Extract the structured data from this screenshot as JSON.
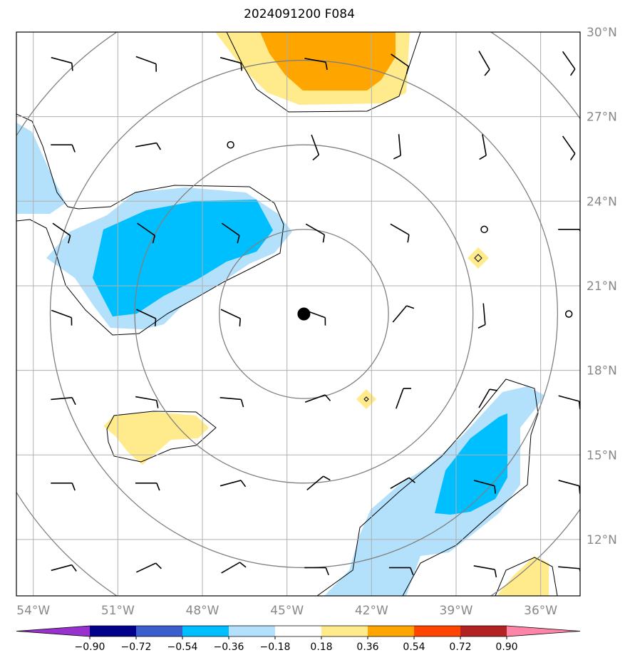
{
  "title": "2024091200 F084",
  "map": {
    "lon_range": [
      -54.6,
      -34.6
    ],
    "lat_range": [
      10.0,
      30.0
    ],
    "lat_labels": [
      {
        "lat": 30,
        "text": "30°N"
      },
      {
        "lat": 27,
        "text": "27°N"
      },
      {
        "lat": 24,
        "text": "24°N"
      },
      {
        "lat": 21,
        "text": "21°N"
      },
      {
        "lat": 18,
        "text": "18°N"
      },
      {
        "lat": 15,
        "text": "15°N"
      },
      {
        "lat": 12,
        "text": "12°N"
      }
    ],
    "lon_labels": [
      {
        "lon": -54,
        "text": "54°W"
      },
      {
        "lon": -51,
        "text": "51°W"
      },
      {
        "lon": -48,
        "text": "48°W"
      },
      {
        "lon": -45,
        "text": "45°W"
      },
      {
        "lon": -42,
        "text": "42°W"
      },
      {
        "lon": -39,
        "text": "39°W"
      },
      {
        "lon": -36,
        "text": "36°W"
      }
    ],
    "storm_center": {
      "lon": -44.4,
      "lat": 20.0
    },
    "range_ring_radii_deg": [
      3,
      6,
      9,
      12
    ],
    "colors": {
      "grid": "#b0b0b0",
      "ring": "#808080",
      "label": "#888888",
      "neg_light": "#b3e0fb",
      "neg_mid": "#00bfff",
      "pos_light": "#ffeb8c",
      "pos_mid": "#ffa500"
    }
  },
  "colorbar": {
    "ticks": [
      "−0.90",
      "−0.72",
      "−0.54",
      "−0.36",
      "−0.18",
      "0.18",
      "0.36",
      "0.54",
      "0.72",
      "0.90"
    ],
    "colors": [
      "#9932cc",
      "#00008b",
      "#3a5fcd",
      "#00bfff",
      "#b3e0fb",
      "#ffffff",
      "#ffeb8c",
      "#ffa500",
      "#ff4500",
      "#b22222",
      "#ff85a8"
    ]
  }
}
